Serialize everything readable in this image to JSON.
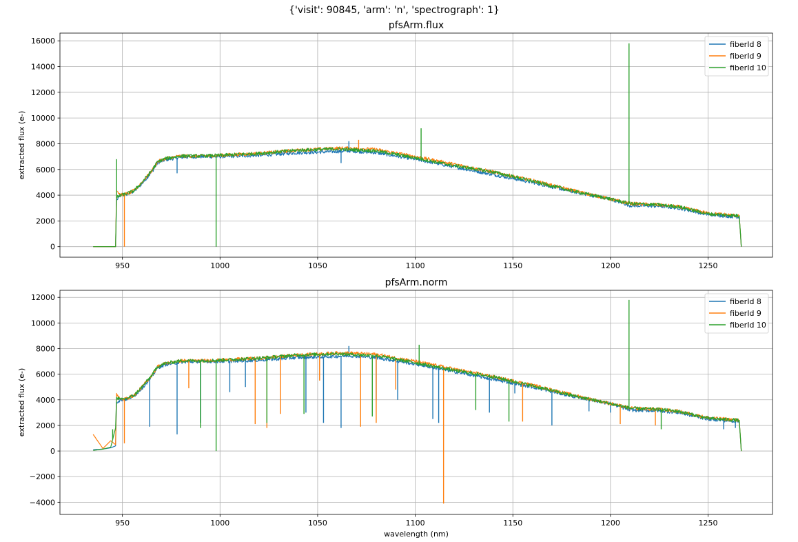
{
  "figure": {
    "suptitle": "{'visit': 90845, 'arm': 'n', 'spectrograph': 1}"
  },
  "colors": {
    "fiber8": "#1f77b4",
    "fiber9": "#ff7f0e",
    "fiber10": "#2ca02c",
    "grid": "#b0b0b0"
  },
  "chart_data": [
    {
      "type": "line",
      "title": "pfsArm.flux",
      "xlabel": "",
      "ylabel": "extracted flux (e-)",
      "xlim": [
        918,
        1283
      ],
      "ylim": [
        -820,
        16600
      ],
      "xticks": [
        950,
        1000,
        1050,
        1100,
        1150,
        1200,
        1250
      ],
      "yticks": [
        0,
        2000,
        4000,
        6000,
        8000,
        10000,
        12000,
        14000,
        16000
      ],
      "grid": true,
      "legend_position": "upper-right",
      "series": [
        {
          "name": "fiberId 8",
          "x": [
            935,
            946.5,
            947,
            949,
            952,
            956,
            960,
            965,
            968,
            972,
            980,
            990,
            1000,
            1020,
            1040,
            1060,
            1066,
            1080,
            1100,
            1120,
            1140,
            1160,
            1180,
            1200,
            1210,
            1225,
            1235,
            1250,
            1266,
            1267
          ],
          "y": [
            0,
            0,
            3600,
            4000,
            4050,
            4300,
            4900,
            5800,
            6500,
            6750,
            6950,
            7000,
            7000,
            7100,
            7300,
            7400,
            7450,
            7300,
            6800,
            6200,
            5600,
            5000,
            4300,
            3700,
            3200,
            3150,
            3000,
            2500,
            2300,
            0
          ],
          "spikes": [
            [
              978,
              5700
            ],
            [
              1066,
              8200
            ],
            [
              1062,
              6500
            ]
          ]
        },
        {
          "name": "fiberId 9",
          "x": [
            935,
            946.5,
            947,
            949,
            952,
            956,
            960,
            965,
            968,
            972,
            980,
            990,
            1000,
            1020,
            1040,
            1060,
            1066,
            1080,
            1100,
            1120,
            1140,
            1160,
            1180,
            1200,
            1210,
            1225,
            1235,
            1250,
            1266,
            1267
          ],
          "y": [
            0,
            0,
            4400,
            4000,
            4100,
            4350,
            5000,
            5900,
            6600,
            6850,
            7050,
            7050,
            7100,
            7250,
            7500,
            7650,
            7650,
            7550,
            7000,
            6400,
            5800,
            5150,
            4400,
            3700,
            3350,
            3250,
            3100,
            2600,
            2400,
            0
          ],
          "spikes": [
            [
              951,
              0
            ],
            [
              1071,
              8300
            ]
          ]
        },
        {
          "name": "fiberId 10",
          "x": [
            935,
            946.5,
            947,
            949,
            952,
            956,
            960,
            965,
            968,
            972,
            980,
            990,
            1000,
            1020,
            1040,
            1060,
            1066,
            1080,
            1100,
            1120,
            1140,
            1160,
            1180,
            1200,
            1210,
            1225,
            1235,
            1250,
            1266,
            1267
          ],
          "y": [
            0,
            0,
            3800,
            4000,
            4100,
            4350,
            5000,
            5900,
            6600,
            6850,
            7050,
            7050,
            7100,
            7250,
            7500,
            7600,
            7550,
            7450,
            6900,
            6300,
            5800,
            5100,
            4350,
            3700,
            3350,
            3250,
            3100,
            2550,
            2400,
            0
          ],
          "spikes": [
            [
              947,
              6800
            ],
            [
              998,
              0
            ],
            [
              1103,
              9200
            ],
            [
              1209.5,
              15800
            ]
          ]
        }
      ]
    },
    {
      "type": "line",
      "title": "pfsArm.norm",
      "xlabel": "wavelength (nm)",
      "ylabel": "extracted flux (e-)",
      "xlim": [
        918,
        1283
      ],
      "ylim": [
        -4950,
        12550
      ],
      "xticks": [
        950,
        1000,
        1050,
        1100,
        1150,
        1200,
        1250
      ],
      "yticks": [
        -4000,
        -2000,
        0,
        2000,
        4000,
        6000,
        8000,
        10000,
        12000
      ],
      "grid": true,
      "legend_position": "upper-right",
      "series": [
        {
          "name": "fiberId 8",
          "x": [
            935,
            940,
            944,
            946.5,
            947,
            949,
            952,
            956,
            960,
            965,
            968,
            972,
            980,
            990,
            1000,
            1020,
            1040,
            1060,
            1066,
            1080,
            1100,
            1120,
            1140,
            1160,
            1180,
            1200,
            1210,
            1225,
            1235,
            1250,
            1266,
            1267
          ],
          "y": [
            100,
            150,
            250,
            400,
            3800,
            4000,
            4050,
            4300,
            4900,
            5800,
            6500,
            6750,
            6950,
            7000,
            7000,
            7100,
            7300,
            7400,
            7450,
            7300,
            6800,
            6200,
            5600,
            5000,
            4300,
            3700,
            3200,
            3150,
            3000,
            2500,
            2300,
            0
          ],
          "spikes": [
            [
              964,
              1900
            ],
            [
              978,
              1300
            ],
            [
              990,
              2200
            ],
            [
              1005,
              4600
            ],
            [
              1013,
              5000
            ],
            [
              1044,
              3000
            ],
            [
              1053,
              2200
            ],
            [
              1062,
              1800
            ],
            [
              1066,
              8200
            ],
            [
              1080,
              4000
            ],
            [
              1091,
              4000
            ],
            [
              1109,
              2500
            ],
            [
              1112,
              2200
            ],
            [
              1138,
              3000
            ],
            [
              1151,
              4500
            ],
            [
              1170,
              2000
            ],
            [
              1189,
              3100
            ],
            [
              1200,
              3000
            ],
            [
              1258,
              1700
            ],
            [
              1264,
              1800
            ]
          ]
        },
        {
          "name": "fiberId 9",
          "x": [
            935,
            940,
            944,
            946.5,
            947,
            949,
            952,
            956,
            960,
            965,
            968,
            972,
            980,
            990,
            1000,
            1020,
            1040,
            1060,
            1066,
            1080,
            1100,
            1120,
            1140,
            1160,
            1180,
            1200,
            1210,
            1225,
            1235,
            1250,
            1266,
            1267
          ],
          "y": [
            1300,
            200,
            800,
            500,
            4500,
            4000,
            4100,
            4350,
            5000,
            5900,
            6600,
            6850,
            7050,
            7050,
            7100,
            7250,
            7500,
            7650,
            7650,
            7550,
            7000,
            6400,
            5800,
            5150,
            4400,
            3700,
            3350,
            3250,
            3100,
            2600,
            2400,
            0
          ],
          "spikes": [
            [
              951,
              600
            ],
            [
              984,
              4900
            ],
            [
              1018,
              2100
            ],
            [
              1024,
              1800
            ],
            [
              1031,
              2900
            ],
            [
              1051,
              5500
            ],
            [
              1072,
              1900
            ],
            [
              1080,
              2200
            ],
            [
              1090,
              4800
            ],
            [
              1114.5,
              -4100
            ],
            [
              1155,
              2300
            ],
            [
              1205,
              2100
            ],
            [
              1223,
              2000
            ]
          ]
        },
        {
          "name": "fiberId 10",
          "x": [
            935,
            940,
            944,
            946.5,
            947,
            949,
            952,
            956,
            960,
            965,
            968,
            972,
            980,
            990,
            1000,
            1020,
            1040,
            1060,
            1066,
            1080,
            1100,
            1120,
            1140,
            1160,
            1180,
            1200,
            1210,
            1225,
            1235,
            1250,
            1266,
            1267
          ],
          "y": [
            50,
            150,
            300,
            1800,
            4200,
            4000,
            4100,
            4350,
            5000,
            5900,
            6600,
            6850,
            7050,
            7050,
            7100,
            7250,
            7500,
            7600,
            7550,
            7450,
            6900,
            6300,
            5800,
            5100,
            4350,
            3700,
            3350,
            3250,
            3100,
            2550,
            2400,
            0
          ],
          "spikes": [
            [
              945,
              1700
            ],
            [
              990,
              1800
            ],
            [
              998,
              0
            ],
            [
              1024,
              2200
            ],
            [
              1043,
              2900
            ],
            [
              1078,
              2700
            ],
            [
              1102,
              8300
            ],
            [
              1131,
              3200
            ],
            [
              1148,
              2300
            ],
            [
              1209.5,
              11800
            ],
            [
              1226,
              1700
            ]
          ]
        }
      ]
    }
  ]
}
